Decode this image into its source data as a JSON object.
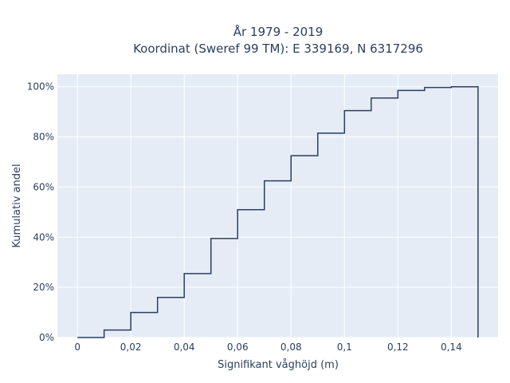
{
  "chart_data": {
    "type": "line",
    "title_line1": "År 1979 - 2019",
    "title_line2": "Koordinat (Sweref 99 TM): E 339169, N 6317296",
    "xlabel": "Signifikant våghöjd (m)",
    "ylabel": "Kumulativ andel",
    "xlim": [
      -0.0075,
      0.1575
    ],
    "ylim": [
      0,
      1.05
    ],
    "grid": true,
    "x_ticks": [
      0,
      0.02,
      0.04,
      0.06,
      0.08,
      0.1,
      0.12,
      0.14
    ],
    "x_tick_labels": [
      "0",
      "0,02",
      "0,04",
      "0,06",
      "0,08",
      "0,1",
      "0,12",
      "0,14"
    ],
    "y_ticks": [
      0,
      0.2,
      0.4,
      0.6,
      0.8,
      1.0
    ],
    "y_tick_labels": [
      "0%",
      "20%",
      "40%",
      "60%",
      "80%",
      "100%"
    ],
    "line_color": "#2a3f5f",
    "bin_edges": [
      0,
      0.01,
      0.02,
      0.03,
      0.04,
      0.05,
      0.06,
      0.07,
      0.08,
      0.09,
      0.1,
      0.11,
      0.12,
      0.13,
      0.14,
      0.15
    ],
    "cumulative_values": [
      0.0,
      0.03,
      0.1,
      0.16,
      0.255,
      0.395,
      0.51,
      0.625,
      0.725,
      0.815,
      0.905,
      0.955,
      0.985,
      0.997,
      1.0
    ]
  }
}
